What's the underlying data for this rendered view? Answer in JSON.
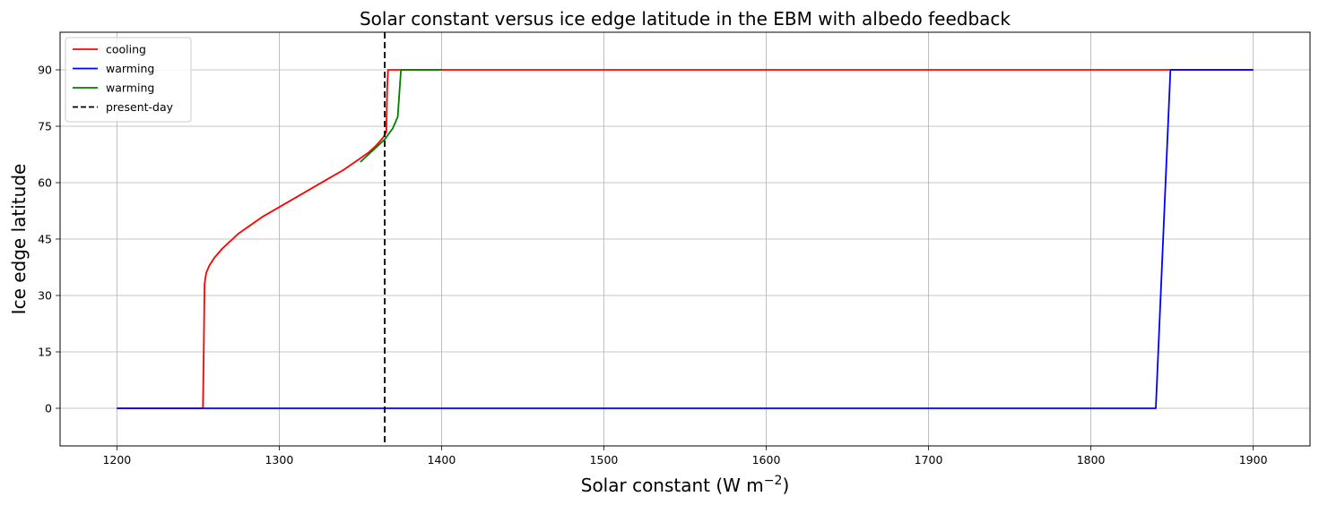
{
  "chart_data": {
    "type": "line",
    "title": "Solar constant versus ice edge latitude in the EBM with albedo feedback",
    "xlabel": "Solar constant (W m",
    "xlabel_sup": "−2",
    "xlabel_end": ")",
    "ylabel": "Ice edge latitude",
    "xlim": [
      1165,
      1935
    ],
    "ylim": [
      -10,
      100
    ],
    "xticks": [
      1200,
      1300,
      1400,
      1500,
      1600,
      1700,
      1800,
      1900
    ],
    "yticks": [
      0,
      15,
      30,
      45,
      60,
      75,
      90
    ],
    "grid": true,
    "legend_position": "upper-left",
    "series": [
      {
        "name": "cooling",
        "color": "#ff0000",
        "dash": "solid",
        "points": [
          [
            1200,
            0
          ],
          [
            1225,
            0
          ],
          [
            1253,
            0
          ],
          [
            1253.5,
            15
          ],
          [
            1254,
            33
          ],
          [
            1255,
            36
          ],
          [
            1257,
            38
          ],
          [
            1260,
            40
          ],
          [
            1265,
            42.5
          ],
          [
            1270,
            44.5
          ],
          [
            1275,
            46.5
          ],
          [
            1280,
            48
          ],
          [
            1290,
            51
          ],
          [
            1300,
            53.5
          ],
          [
            1310,
            56
          ],
          [
            1320,
            58.5
          ],
          [
            1330,
            61
          ],
          [
            1340,
            63.5
          ],
          [
            1350,
            66.5
          ],
          [
            1355,
            68
          ],
          [
            1360,
            70
          ],
          [
            1364,
            72
          ],
          [
            1366,
            73.5
          ],
          [
            1366.5,
            85
          ],
          [
            1367,
            90
          ],
          [
            1400,
            90
          ],
          [
            1500,
            90
          ],
          [
            1600,
            90
          ],
          [
            1700,
            90
          ],
          [
            1800,
            90
          ],
          [
            1900,
            90
          ]
        ]
      },
      {
        "name": "warming",
        "color": "#0000ff",
        "dash": "solid",
        "points": [
          [
            1200,
            0
          ],
          [
            1400,
            0
          ],
          [
            1500,
            0
          ],
          [
            1600,
            0
          ],
          [
            1700,
            0
          ],
          [
            1800,
            0
          ],
          [
            1840,
            0
          ],
          [
            1849,
            90
          ],
          [
            1850,
            90
          ],
          [
            1900,
            90
          ]
        ]
      },
      {
        "name": "warming",
        "color": "#008000",
        "dash": "solid",
        "points": [
          [
            1350,
            65.5
          ],
          [
            1355,
            67.5
          ],
          [
            1360,
            69.5
          ],
          [
            1365,
            71.5
          ],
          [
            1370,
            74.5
          ],
          [
            1373,
            77.5
          ],
          [
            1375,
            90
          ],
          [
            1380,
            90
          ],
          [
            1400,
            90
          ]
        ]
      },
      {
        "name": "present-day",
        "color": "#000000",
        "dash": "dashed",
        "vline_x": 1365
      }
    ]
  }
}
